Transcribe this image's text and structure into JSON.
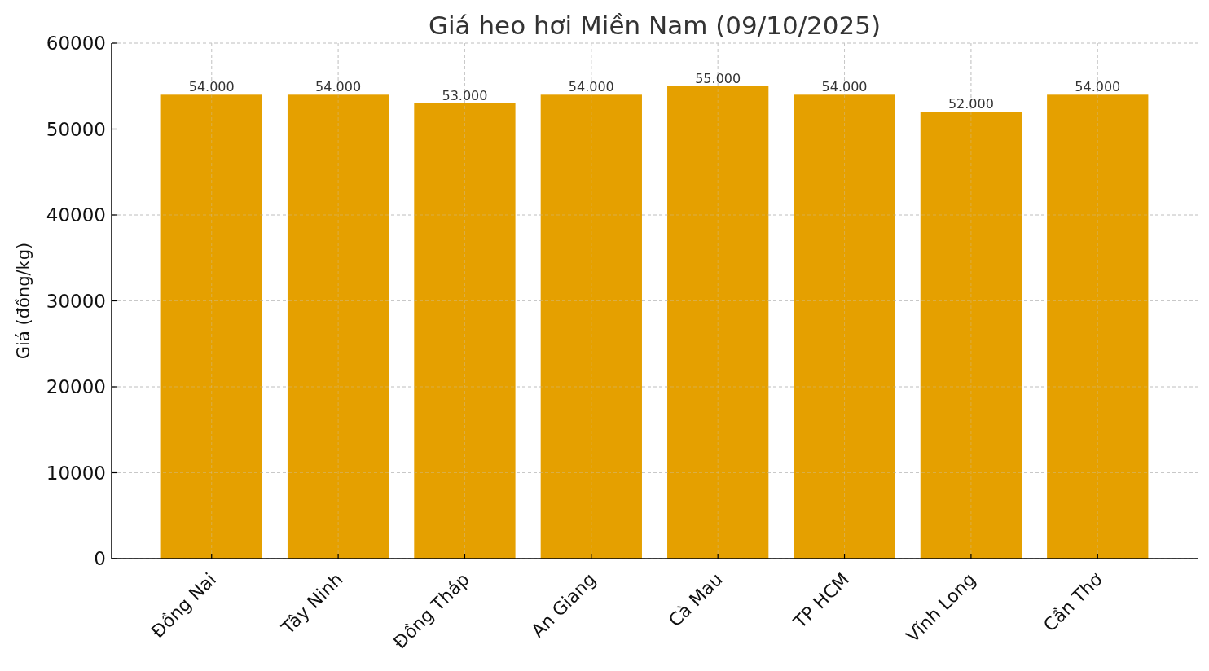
{
  "chart_data": {
    "type": "bar",
    "title": "Giá heo hơi Miền Nam (09/10/2025)",
    "ylabel": "Giá (đồng/kg)",
    "categories": [
      "Đồng Nai",
      "Tây Ninh",
      "Đồng Tháp",
      "An Giang",
      "Cà Mau",
      "TP HCM",
      "Vĩnh Long",
      "Cần Thơ"
    ],
    "values": [
      54000,
      54000,
      53000,
      54000,
      55000,
      54000,
      52000,
      54000
    ],
    "value_labels": [
      "54.000",
      "54.000",
      "53.000",
      "54.000",
      "55.000",
      "54.000",
      "52.000",
      "54.000"
    ],
    "color": "#e5a000",
    "ylim": [
      0,
      60000
    ],
    "yticks": [
      0,
      10000,
      20000,
      30000,
      40000,
      50000,
      60000
    ],
    "grid": true
  }
}
